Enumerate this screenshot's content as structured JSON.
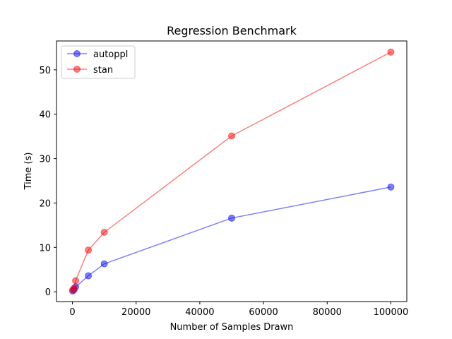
{
  "chart_data": {
    "type": "line",
    "title": "Regression Benchmark",
    "xlabel": "Number of Samples Drawn",
    "ylabel": "Time (s)",
    "xlim": [
      -5000,
      105000
    ],
    "ylim": [
      -2.2,
      56.5
    ],
    "xticks": [
      0,
      20000,
      40000,
      60000,
      80000,
      100000
    ],
    "yticks": [
      0,
      10,
      20,
      30,
      40,
      50
    ],
    "grid": false,
    "legend_position": "upper-left",
    "series": [
      {
        "name": "autoppl",
        "color": "#0000ff",
        "x": [
          100,
          500,
          1000,
          5000,
          10000,
          50000,
          100000
        ],
        "y": [
          0.2,
          0.5,
          1.1,
          3.6,
          6.3,
          16.6,
          23.6
        ]
      },
      {
        "name": "stan",
        "color": "#ff0000",
        "x": [
          100,
          500,
          1000,
          5000,
          10000,
          50000,
          100000
        ],
        "y": [
          0.4,
          0.8,
          2.5,
          9.4,
          13.4,
          35.1,
          54.0
        ]
      }
    ]
  }
}
